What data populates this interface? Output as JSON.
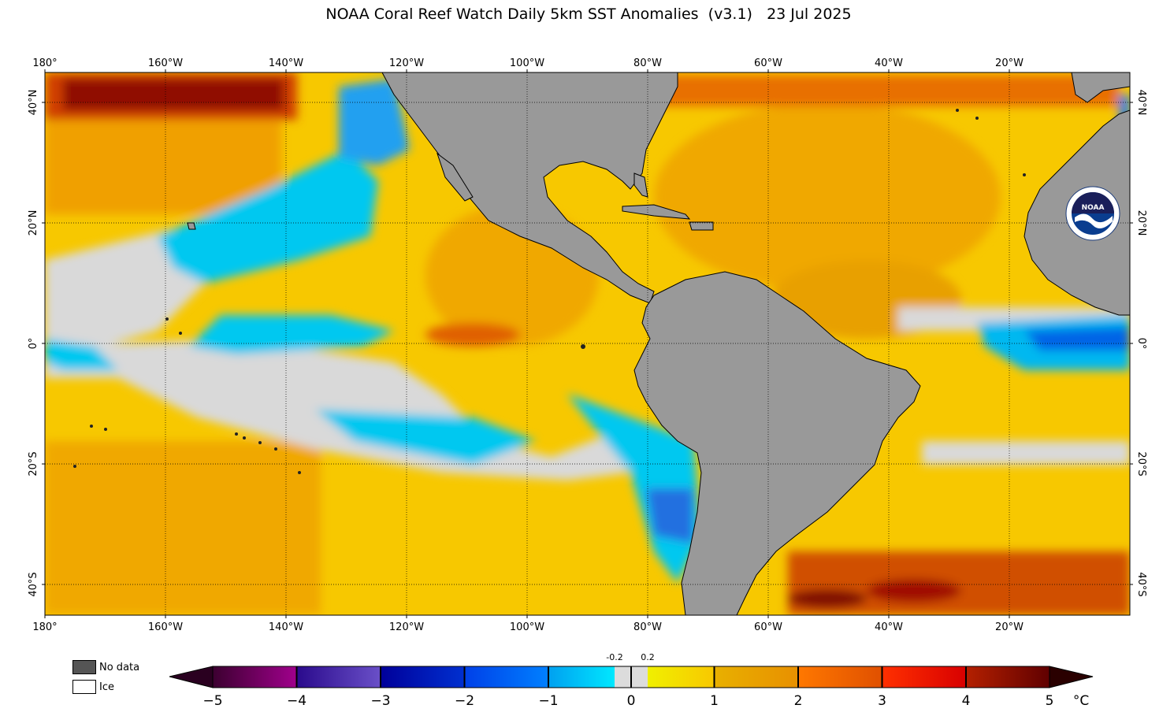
{
  "title": "NOAA Coral Reef Watch Daily 5km SST Anomalies  (v3.1)   23 Jul 2025",
  "lon_labels": [
    "180°",
    "160°W",
    "140°W",
    "120°W",
    "100°W",
    "80°W",
    "60°W",
    "40°W",
    "20°W"
  ],
  "lat_labels": [
    "40°N",
    "20°N",
    "0°",
    "20°S",
    "40°S"
  ],
  "legend_keys": [
    {
      "label": "No data",
      "color": "#555555"
    },
    {
      "label": "Ice",
      "color": "#ffffff"
    }
  ],
  "colorbar": {
    "ticks": [
      "−5",
      "−4",
      "−3",
      "−2",
      "−1",
      "0",
      "1",
      "2",
      "3",
      "4",
      "5"
    ],
    "small_ticks": [
      "-0.2",
      "0.2"
    ],
    "unit": "°C"
  },
  "colors": {
    "land": "#999999",
    "neutral": "#d9d9d9",
    "warm": "#f7c800",
    "hot": "#f08c00",
    "very_hot": "#c83200",
    "cool": "#00c8f0",
    "cold": "#0064e6"
  },
  "logo": {
    "text": "NOAA"
  }
}
